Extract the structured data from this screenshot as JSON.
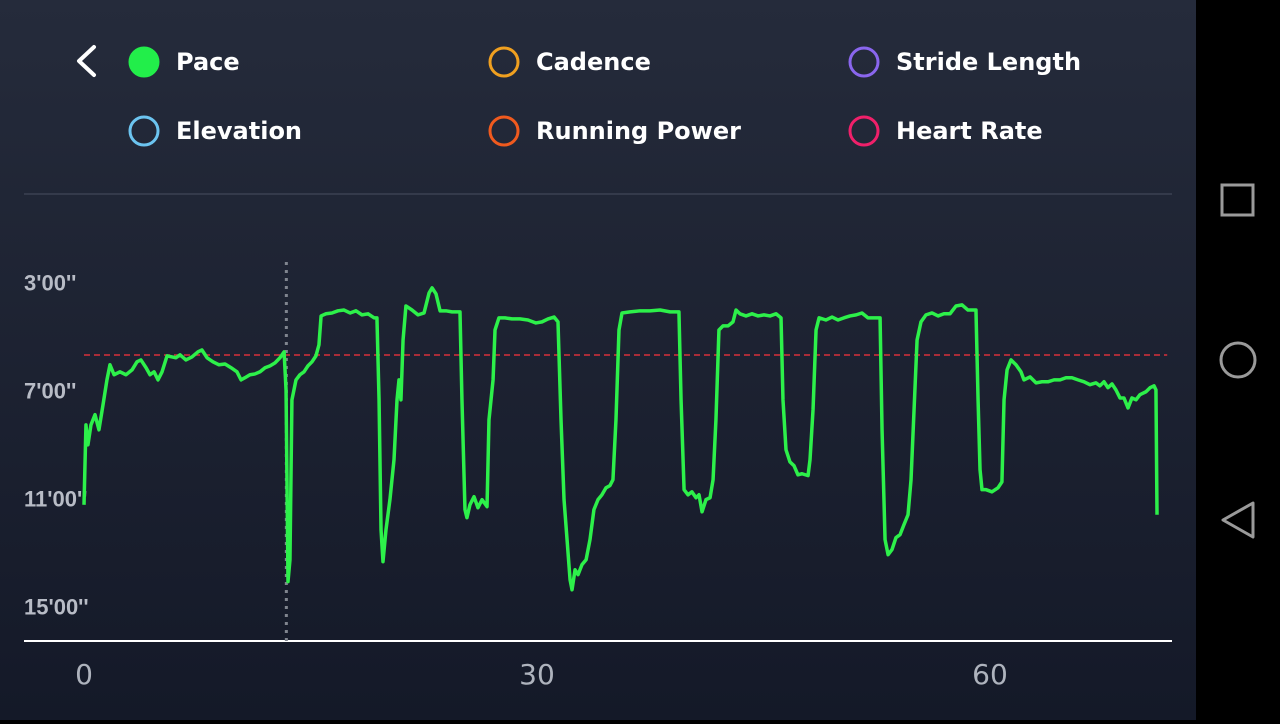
{
  "metrics": [
    {
      "label": "Pace",
      "color": "#22ee4a",
      "selected": true
    },
    {
      "label": "Cadence",
      "color": "#f0a020",
      "selected": false
    },
    {
      "label": "Stride Length",
      "color": "#8a66ee",
      "selected": false
    },
    {
      "label": "Elevation",
      "color": "#6cc4f0",
      "selected": false
    },
    {
      "label": "Running Power",
      "color": "#f05a1e",
      "selected": false
    },
    {
      "label": "Heart Rate",
      "color": "#f0206a",
      "selected": false
    }
  ],
  "chart_data": {
    "type": "line",
    "x": [
      0,
      0.13,
      0.26,
      0.46,
      0.73,
      0.99,
      1.26,
      1.52,
      1.72,
      1.99,
      2.38,
      2.78,
      3.18,
      3.51,
      3.77,
      4.11,
      4.37,
      4.64,
      4.9,
      5.17,
      5.5,
      5.83,
      6.09,
      6.36,
      6.75,
      7.15,
      7.55,
      7.81,
      8.15,
      8.54,
      8.94,
      9.34,
      9.74,
      10.13,
      10.4,
      10.66,
      10.99,
      11.32,
      11.66,
      11.99,
      12.32,
      12.65,
      12.98,
      13.25,
      13.38,
      13.51,
      13.64,
      13.77,
      14.04,
      14.3,
      14.57,
      14.83,
      15.1,
      15.36,
      15.56,
      15.7,
      16.03,
      16.42,
      16.82,
      17.22,
      17.62,
      18.01,
      18.41,
      18.81,
      19.21,
      19.4,
      19.54,
      19.67,
      19.8,
      20,
      20.26,
      20.53,
      20.73,
      20.86,
      20.99,
      21.13,
      21.32,
      21.72,
      22.12,
      22.52,
      22.85,
      23.05,
      23.31,
      23.58,
      23.97,
      24.37,
      24.9,
      25.03,
      25.23,
      25.36,
      25.56,
      25.83,
      26.09,
      26.36,
      26.69,
      26.82,
      27.09,
      27.22,
      27.48,
      27.88,
      28.34,
      28.87,
      29.4,
      29.93,
      30.33,
      30.73,
      31.13,
      31.39,
      31.59,
      31.79,
      31.99,
      32.19,
      32.32,
      32.52,
      32.72,
      32.98,
      33.25,
      33.51,
      33.77,
      34.04,
      34.3,
      34.57,
      34.83,
      35.03,
      35.23,
      35.43,
      35.63,
      36.16,
      36.82,
      37.48,
      38.15,
      38.81,
      39.4,
      39.54,
      39.74,
      40,
      40.26,
      40.53,
      40.73,
      40.93,
      41.19,
      41.46,
      41.66,
      41.85,
      42.05,
      42.32,
      42.65,
      42.98,
      43.18,
      43.44,
      43.84,
      44.24,
      44.64,
      45.03,
      45.43,
      45.83,
      46.16,
      46.29,
      46.49,
      46.75,
      47.02,
      47.28,
      47.55,
      47.95,
      48.08,
      48.28,
      48.48,
      48.68,
      49.14,
      49.54,
      49.93,
      50.33,
      50.73,
      51.13,
      51.52,
      51.92,
      52.72,
      52.85,
      53.05,
      53.25,
      53.51,
      53.77,
      54.04,
      54.3,
      54.57,
      54.77,
      54.97,
      55.17,
      55.43,
      55.76,
      56.16,
      56.56,
      56.95,
      57.35,
      57.75,
      58.15,
      58.54,
      59.07,
      59.21,
      59.34,
      59.47,
      59.74,
      60.13,
      60.53,
      60.79,
      60.93,
      61.13,
      61.39,
      61.72,
      62.05,
      62.25,
      62.65,
      63.05,
      63.44,
      63.84,
      64.24,
      64.64,
      65.03,
      65.43,
      65.83,
      66.23,
      66.62,
      67.02,
      67.28,
      67.55,
      67.81,
      68.08,
      68.34,
      68.61,
      68.87,
      69.14,
      69.4,
      69.67,
      69.93,
      70.33,
      70.6,
      70.86,
      70.99,
      71.06
    ],
    "series": [
      {
        "name": "Pace",
        "color": "#2df04a",
        "values": [
          11.15,
          8.19,
          8.93,
          8.19,
          7.81,
          8.37,
          7.44,
          6.52,
          5.96,
          6.33,
          6.22,
          6.33,
          6.15,
          5.85,
          5.78,
          6.07,
          6.33,
          6.22,
          6.52,
          6.22,
          5.63,
          5.67,
          5.7,
          5.59,
          5.78,
          5.67,
          5.48,
          5.41,
          5.7,
          5.85,
          5.96,
          5.93,
          6.07,
          6.22,
          6.52,
          6.44,
          6.33,
          6.3,
          6.22,
          6.07,
          6,
          5.89,
          5.7,
          5.48,
          6.89,
          14,
          13.19,
          7.26,
          6.52,
          6.33,
          6.22,
          6,
          5.85,
          5.63,
          5.22,
          4.15,
          4.07,
          4.04,
          3.96,
          3.93,
          4.04,
          3.96,
          4.11,
          4.07,
          4.22,
          4.22,
          7.26,
          12.07,
          13.26,
          12.07,
          10.96,
          9.48,
          7.26,
          6.52,
          7.26,
          5.04,
          3.78,
          3.93,
          4.11,
          4.04,
          3.3,
          3.11,
          3.33,
          3.96,
          3.96,
          4,
          4,
          7.26,
          11.33,
          11.63,
          11.15,
          10.85,
          11.26,
          10.96,
          11.22,
          8,
          6.52,
          4.67,
          4.22,
          4.22,
          4.26,
          4.26,
          4.3,
          4.41,
          4.37,
          4.26,
          4.19,
          4.37,
          8,
          10.96,
          12.44,
          13.93,
          14.3,
          13.56,
          13.74,
          13.37,
          13.19,
          12.44,
          11.33,
          10.96,
          10.78,
          10.52,
          10.44,
          10.22,
          8,
          4.67,
          4.04,
          4,
          3.96,
          3.96,
          3.93,
          4,
          4,
          7.26,
          10.59,
          10.78,
          10.67,
          10.89,
          10.78,
          11.41,
          10.96,
          10.89,
          10.22,
          8,
          4.67,
          4.52,
          4.52,
          4.37,
          3.93,
          4.07,
          4.15,
          4.07,
          4.15,
          4.11,
          4.15,
          4.07,
          4.22,
          7.26,
          9.11,
          9.56,
          9.7,
          10.04,
          10,
          10.07,
          9.48,
          7.63,
          4.67,
          4.22,
          4.3,
          4.19,
          4.3,
          4.22,
          4.15,
          4.11,
          4.04,
          4.22,
          4.22,
          8.37,
          12.44,
          13,
          12.81,
          12.37,
          12.26,
          11.89,
          11.52,
          10.22,
          7.63,
          5.04,
          4.37,
          4.11,
          4.04,
          4.15,
          4.07,
          4.07,
          3.78,
          3.74,
          3.93,
          3.93,
          7.26,
          9.85,
          10.59,
          10.59,
          10.67,
          10.52,
          10.3,
          7.26,
          6.15,
          5.78,
          5.96,
          6.22,
          6.52,
          6.41,
          6.63,
          6.59,
          6.59,
          6.52,
          6.52,
          6.44,
          6.44,
          6.52,
          6.59,
          6.7,
          6.63,
          6.74,
          6.59,
          6.81,
          6.67,
          6.89,
          7.19,
          7.19,
          7.56,
          7.19,
          7.26,
          7.07,
          6.96,
          6.81,
          6.74,
          6.89,
          11.52
        ]
      }
    ],
    "xlim": [
      0,
      72
    ],
    "xticks": [
      0,
      30,
      60
    ],
    "ylim": [
      16.2,
      0
    ],
    "yticks": [
      {
        "value": 3,
        "label": "3'00''"
      },
      {
        "value": 7,
        "label": "7'00''"
      },
      {
        "value": 11,
        "label": "11'00''"
      },
      {
        "value": 15,
        "label": "15'00''"
      }
    ],
    "average": 5.6,
    "average_color": "#d8303a",
    "cursor_x": 13.4
  }
}
